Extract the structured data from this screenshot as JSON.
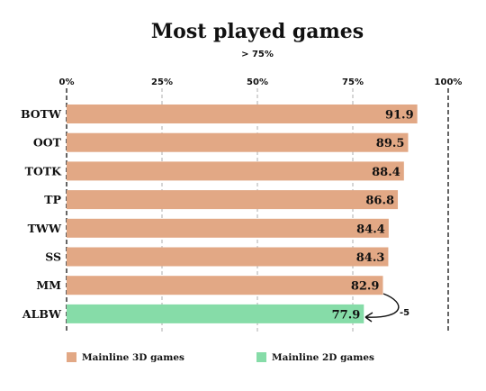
{
  "chart_data": {
    "type": "bar",
    "orientation": "horizontal",
    "title": "Most played games",
    "subtitle": "> 75%",
    "categories": [
      "BOTW",
      "OOT",
      "TOTK",
      "TP",
      "TWW",
      "SS",
      "MM",
      "ALBW"
    ],
    "values": [
      91.9,
      89.5,
      88.4,
      86.8,
      84.4,
      84.3,
      82.9,
      77.9
    ],
    "groups": [
      "Mainline 3D games",
      "Mainline 3D games",
      "Mainline 3D games",
      "Mainline 3D games",
      "Mainline 3D games",
      "Mainline 3D games",
      "Mainline 3D games",
      "Mainline 2D games"
    ],
    "xlim": [
      0,
      100
    ],
    "x_ticks": [
      0,
      25,
      50,
      75,
      100
    ],
    "x_tick_labels": [
      "0%",
      "25%",
      "50%",
      "75%",
      "100%"
    ],
    "tick_position": "top",
    "grid": true,
    "legend": {
      "position": "bottom",
      "entries": [
        {
          "label": "Mainline 3D games",
          "color": "#e2a885"
        },
        {
          "label": "Mainline 2D games",
          "color": "#86dca8"
        }
      ]
    },
    "annotation": {
      "text": "-5",
      "from": "MM",
      "to": "ALBW"
    }
  },
  "colors": {
    "mainline_3d": "#e2a885",
    "mainline_2d": "#86dca8",
    "gridline": "#9a9a9a",
    "text": "#111111"
  }
}
